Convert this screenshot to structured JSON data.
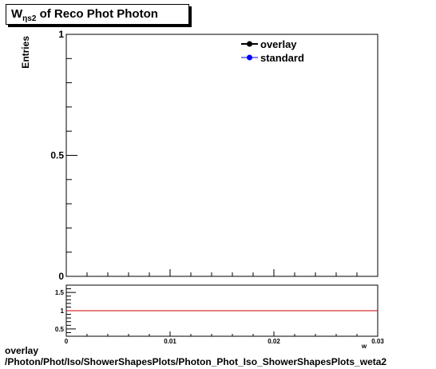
{
  "title": {
    "main": "W",
    "sub": "ηs2",
    "rest": " of Reco Phot Photon"
  },
  "footer": {
    "line1": "overlay",
    "line2": "/Photon/Phot/Iso/ShowerShapesPlots/Photon_Phot_Iso_ShowerShapesPlots_weta2"
  },
  "colors": {
    "overlay": "#000000",
    "standard": "#0000ff",
    "ratio_line": "#cc0000",
    "axis": "#000000"
  },
  "chart_data": [
    {
      "type": "line",
      "title": "W ηs2 of Reco Phot Photon",
      "ylabel": "Entries",
      "xlabel": "w",
      "xlim": [
        0,
        0.03
      ],
      "ylim": [
        0,
        1
      ],
      "x_ticks": [
        0,
        0.01,
        0.02,
        0.03
      ],
      "y_ticks": [
        0,
        0.5,
        1
      ],
      "y_tick_labels": [
        "0",
        "0.5",
        "1"
      ],
      "legend_position": "top-right",
      "series": [
        {
          "name": "overlay",
          "x": [],
          "y": []
        },
        {
          "name": "standard",
          "x": [],
          "y": []
        }
      ]
    },
    {
      "type": "line",
      "xlim": [
        0,
        0.03
      ],
      "ylim": [
        0.3,
        1.7
      ],
      "x_ticks": [
        0,
        0.01,
        0.02,
        0.03
      ],
      "x_tick_labels": [
        "0",
        "0.01",
        "0.02",
        "0.03"
      ],
      "y_ticks": [
        0.5,
        1,
        1.5
      ],
      "y_tick_labels": [
        "0.5",
        "1",
        "1.5"
      ],
      "series": [
        {
          "x": [
            0,
            0.03
          ],
          "y": [
            1,
            1
          ]
        }
      ]
    }
  ]
}
